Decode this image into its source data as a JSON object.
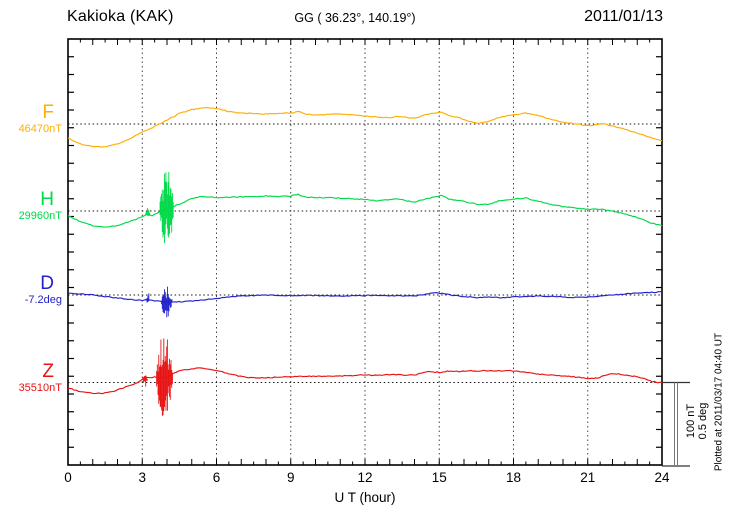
{
  "header": {
    "station": "Kakioka (KAK)",
    "coords": "GG ( 36.23°, 140.19°)",
    "date": "2011/01/13"
  },
  "scale_bar": {
    "label_nt": "100 nT",
    "label_deg": "0.5 deg"
  },
  "plotted_at": "Plotted at 2011/03/17 04:40 UT",
  "chart_data": {
    "type": "line",
    "title": "Kakioka (KAK) magnetogram 2011/01/13",
    "xlabel": "U T (hour)",
    "x_range": [
      0,
      24
    ],
    "x_ticks": [
      0,
      3,
      6,
      9,
      12,
      15,
      18,
      21,
      24
    ],
    "grid": "vertical-dotted-every-3h, dotted zero baseline per trace",
    "legend_position": "left-margin",
    "scale_per_division": {
      "nT": 100,
      "deg": 0.5
    },
    "series": [
      {
        "name": "F",
        "unit": "nT",
        "reference": 46470,
        "reference_label": "46470nT",
        "color": "#FFAE00",
        "points": [
          [
            0,
            -16.5
          ],
          [
            0.5,
            -23.5
          ],
          [
            1,
            -26.5
          ],
          [
            1.5,
            -27.1
          ],
          [
            2,
            -23.5
          ],
          [
            2.5,
            -17.6
          ],
          [
            3,
            -9.4
          ],
          [
            3.5,
            -2.9
          ],
          [
            4,
            4.7
          ],
          [
            4.5,
            12.4
          ],
          [
            5,
            17.1
          ],
          [
            5.5,
            19.4
          ],
          [
            6,
            18.2
          ],
          [
            6.5,
            14.7
          ],
          [
            7,
            12.9
          ],
          [
            7.5,
            12.4
          ],
          [
            8,
            11.8
          ],
          [
            8.5,
            12.4
          ],
          [
            9,
            12.9
          ],
          [
            9.3,
            14.7
          ],
          [
            9.6,
            11.8
          ],
          [
            10,
            10.6
          ],
          [
            10.5,
            11.2
          ],
          [
            11,
            11.8
          ],
          [
            11.5,
            10.6
          ],
          [
            12,
            9.4
          ],
          [
            12.5,
            8.2
          ],
          [
            13,
            7.1
          ],
          [
            13.3,
            9.4
          ],
          [
            13.7,
            7.6
          ],
          [
            14,
            6.5
          ],
          [
            14.4,
            10.6
          ],
          [
            14.8,
            12.9
          ],
          [
            15.1,
            13.5
          ],
          [
            15.4,
            9.4
          ],
          [
            15.7,
            8.2
          ],
          [
            16,
            5.3
          ],
          [
            16.3,
            2.4
          ],
          [
            16.6,
            0.6
          ],
          [
            17,
            2.9
          ],
          [
            17.4,
            7.6
          ],
          [
            17.8,
            10
          ],
          [
            18.2,
            11.2
          ],
          [
            18.5,
            12.9
          ],
          [
            18.8,
            11.2
          ],
          [
            19.2,
            8.2
          ],
          [
            19.6,
            4.7
          ],
          [
            20,
            2.4
          ],
          [
            20.4,
            0.6
          ],
          [
            20.8,
            -1.2
          ],
          [
            21.2,
            -1.8
          ],
          [
            21.6,
            0.6
          ],
          [
            22,
            -2.4
          ],
          [
            22.4,
            -5.3
          ],
          [
            22.8,
            -8.8
          ],
          [
            23.2,
            -12.4
          ],
          [
            23.6,
            -16.5
          ],
          [
            24,
            -19.4
          ]
        ],
        "bursts": []
      },
      {
        "name": "H",
        "unit": "nT",
        "reference": 29960,
        "reference_label": "29960nT",
        "color": "#00D948",
        "points": [
          [
            0,
            -5.9
          ],
          [
            0.5,
            -12.4
          ],
          [
            1,
            -17.1
          ],
          [
            1.5,
            -18.8
          ],
          [
            2,
            -17.1
          ],
          [
            2.5,
            -12.4
          ],
          [
            3,
            -7.1
          ],
          [
            3.2,
            -4.1
          ],
          [
            3.4,
            -5.3
          ],
          [
            3.6,
            -2.4
          ],
          [
            3.8,
            0.5
          ],
          [
            4,
            2.9
          ],
          [
            4.2,
            4.1
          ],
          [
            4.4,
            7.1
          ],
          [
            4.7,
            10.6
          ],
          [
            5,
            14.7
          ],
          [
            5.4,
            17.1
          ],
          [
            5.8,
            16.5
          ],
          [
            6,
            15.9
          ],
          [
            6.5,
            16.2
          ],
          [
            7,
            16.5
          ],
          [
            7.5,
            16.8
          ],
          [
            8,
            17.6
          ],
          [
            8.5,
            17.1
          ],
          [
            9,
            17.6
          ],
          [
            9.3,
            19.4
          ],
          [
            9.6,
            16.2
          ],
          [
            10,
            15.9
          ],
          [
            10.5,
            15.6
          ],
          [
            11,
            15.3
          ],
          [
            11.5,
            14.4
          ],
          [
            12,
            13.5
          ],
          [
            12.5,
            11.8
          ],
          [
            13,
            13.5
          ],
          [
            13.3,
            14.7
          ],
          [
            13.7,
            11.8
          ],
          [
            14,
            10.6
          ],
          [
            14.4,
            13.5
          ],
          [
            14.8,
            16.5
          ],
          [
            15.1,
            18.2
          ],
          [
            15.4,
            14.1
          ],
          [
            15.8,
            12.4
          ],
          [
            16.2,
            10
          ],
          [
            16.6,
            7.6
          ],
          [
            17,
            8.2
          ],
          [
            17.4,
            11.8
          ],
          [
            17.8,
            13.5
          ],
          [
            18.2,
            14.7
          ],
          [
            18.5,
            15.3
          ],
          [
            18.8,
            12.9
          ],
          [
            19.2,
            10
          ],
          [
            19.6,
            7.1
          ],
          [
            20,
            5.3
          ],
          [
            20.5,
            3.5
          ],
          [
            21,
            1.8
          ],
          [
            21.5,
            2.4
          ],
          [
            22,
            0
          ],
          [
            22.5,
            -3.5
          ],
          [
            23,
            -7.6
          ],
          [
            23.5,
            -13.5
          ],
          [
            24,
            -17.1
          ]
        ],
        "bursts": [
          {
            "from": 3.72,
            "to": 4.25,
            "peak": 51,
            "trough": -45,
            "center": 1
          },
          {
            "from": 3.13,
            "to": 3.3,
            "peak": 5,
            "trough": -7,
            "center": -4
          }
        ]
      },
      {
        "name": "D",
        "unit": "deg",
        "reference": -7.2,
        "reference_label": "-7.2deg",
        "color": "#2222CC",
        "points": [
          [
            0,
            0.012
          ],
          [
            0.5,
            0.006
          ],
          [
            1,
            0
          ],
          [
            1.5,
            -0.009
          ],
          [
            2,
            -0.018
          ],
          [
            2.5,
            -0.026
          ],
          [
            3,
            -0.032
          ],
          [
            3.2,
            -0.026
          ],
          [
            3.5,
            -0.035
          ],
          [
            3.8,
            -0.038
          ],
          [
            4.1,
            -0.041
          ],
          [
            4.4,
            -0.041
          ],
          [
            4.8,
            -0.038
          ],
          [
            5.2,
            -0.032
          ],
          [
            5.6,
            -0.026
          ],
          [
            6,
            -0.021
          ],
          [
            6.5,
            -0.012
          ],
          [
            7,
            -0.006
          ],
          [
            7.5,
            -0.003
          ],
          [
            8,
            0
          ],
          [
            8.5,
            -0.002
          ],
          [
            9,
            -0.003
          ],
          [
            9.5,
            -0.002
          ],
          [
            10,
            -0.003
          ],
          [
            10.5,
            -0.004
          ],
          [
            11,
            -0.006
          ],
          [
            11.5,
            -0.004
          ],
          [
            12,
            -0.003
          ],
          [
            12.5,
            -0.004
          ],
          [
            13,
            -0.003
          ],
          [
            13.5,
            -0.004
          ],
          [
            14,
            -0.006
          ],
          [
            14.4,
            0.003
          ],
          [
            14.8,
            0.015
          ],
          [
            15.2,
            0.006
          ],
          [
            15.6,
            -0.003
          ],
          [
            16,
            -0.009
          ],
          [
            16.5,
            -0.015
          ],
          [
            17,
            -0.012
          ],
          [
            17.5,
            -0.015
          ],
          [
            18,
            -0.012
          ],
          [
            18.5,
            -0.009
          ],
          [
            19,
            -0.006
          ],
          [
            19.5,
            -0.009
          ],
          [
            20,
            -0.012
          ],
          [
            20.5,
            -0.015
          ],
          [
            21,
            -0.012
          ],
          [
            21.5,
            -0.006
          ],
          [
            22,
            0
          ],
          [
            22.5,
            0.006
          ],
          [
            23,
            0.012
          ],
          [
            23.5,
            0.015
          ],
          [
            24,
            0.018
          ]
        ],
        "bursts": [
          {
            "from": 3.78,
            "to": 4.2,
            "peak": 0.055,
            "trough": -0.135,
            "center": -0.04
          },
          {
            "from": 3.16,
            "to": 3.3,
            "peak": 0.02,
            "trough": -0.05,
            "center": -0.028
          }
        ]
      },
      {
        "name": "Z",
        "unit": "nT",
        "reference": 35510,
        "reference_label": "35510nT",
        "color": "#E81414",
        "points": [
          [
            0,
            -6.5
          ],
          [
            0.5,
            -10.6
          ],
          [
            1,
            -12.9
          ],
          [
            1.5,
            -12.4
          ],
          [
            2,
            -8.8
          ],
          [
            2.5,
            -3.5
          ],
          [
            2.8,
            0
          ],
          [
            3,
            3.5
          ],
          [
            3.1,
            6.5
          ],
          [
            3.3,
            5.3
          ],
          [
            3.5,
            6.5
          ],
          [
            3.8,
            5.9
          ],
          [
            4,
            5.3
          ],
          [
            4.3,
            11.8
          ],
          [
            4.6,
            14.1
          ],
          [
            5,
            15.9
          ],
          [
            5.3,
            17.1
          ],
          [
            5.6,
            16.5
          ],
          [
            6,
            14.1
          ],
          [
            6.4,
            11.2
          ],
          [
            6.8,
            8.2
          ],
          [
            7.2,
            5.9
          ],
          [
            7.6,
            5.3
          ],
          [
            8,
            5.3
          ],
          [
            8.5,
            6.5
          ],
          [
            9,
            7.1
          ],
          [
            9.5,
            7.1
          ],
          [
            10,
            7.6
          ],
          [
            10.5,
            7.1
          ],
          [
            11,
            7.6
          ],
          [
            11.5,
            8.2
          ],
          [
            12,
            8.8
          ],
          [
            12.5,
            8.5
          ],
          [
            13,
            9.4
          ],
          [
            13.5,
            8.8
          ],
          [
            14,
            8.8
          ],
          [
            14.3,
            11.2
          ],
          [
            14.6,
            12.9
          ],
          [
            15,
            11.8
          ],
          [
            15.4,
            13.5
          ],
          [
            15.8,
            12.9
          ],
          [
            16.2,
            14.1
          ],
          [
            16.6,
            13.5
          ],
          [
            17,
            14.1
          ],
          [
            17.4,
            13.8
          ],
          [
            17.8,
            14.1
          ],
          [
            18.2,
            12.9
          ],
          [
            18.6,
            11.8
          ],
          [
            19,
            10
          ],
          [
            19.5,
            8.8
          ],
          [
            20,
            7.6
          ],
          [
            20.5,
            6.5
          ],
          [
            21,
            4.7
          ],
          [
            21.4,
            5.3
          ],
          [
            21.8,
            9.4
          ],
          [
            22.1,
            10.6
          ],
          [
            22.4,
            9.4
          ],
          [
            22.8,
            7.6
          ],
          [
            23.2,
            5.3
          ],
          [
            23.6,
            1.2
          ],
          [
            24,
            -0.6
          ]
        ],
        "bursts": [
          {
            "from": 3.58,
            "to": 4.22,
            "peak": 58,
            "trough": -42,
            "center": 5
          },
          {
            "from": 3.02,
            "to": 3.2,
            "peak": 11,
            "trough": -6,
            "center": 4
          }
        ]
      }
    ]
  }
}
